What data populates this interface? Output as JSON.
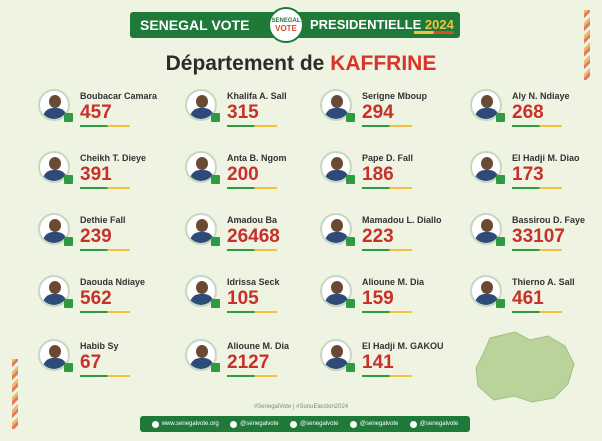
{
  "banner": {
    "left_text": "SENEGAL VOTE",
    "logo_top": "SENEGAL",
    "logo_bottom": "VOTE",
    "right_text": "PRESIDENTIELLE",
    "year": "2024"
  },
  "title": {
    "prefix": "Département de",
    "department": "KAFFRINE"
  },
  "candidates": [
    {
      "name": "Boubacar Camara",
      "votes": "457"
    },
    {
      "name": "Khalifa A. Sall",
      "votes": "315"
    },
    {
      "name": "Serigne Mboup",
      "votes": "294"
    },
    {
      "name": "Aly N. Ndiaye",
      "votes": "268"
    },
    {
      "name": "Cheikh T. Dieye",
      "votes": "391"
    },
    {
      "name": "Anta B. Ngom",
      "votes": "200"
    },
    {
      "name": "Pape D. Fall",
      "votes": "186"
    },
    {
      "name": "El Hadji M. Diao",
      "votes": "173"
    },
    {
      "name": "Dethie Fall",
      "votes": "239"
    },
    {
      "name": "Amadou Ba",
      "votes": "26468"
    },
    {
      "name": "Mamadou L. Diallo",
      "votes": "223"
    },
    {
      "name": "Bassirou D. Faye",
      "votes": "33107"
    },
    {
      "name": "Daouda Ndiaye",
      "votes": "562"
    },
    {
      "name": "Idrissa Seck",
      "votes": "105"
    },
    {
      "name": "Alioune M. Dia",
      "votes": "159"
    },
    {
      "name": "Thierno A. Sall",
      "votes": "461"
    },
    {
      "name": "Habib Sy",
      "votes": "67"
    },
    {
      "name": "Alioune M. Dia",
      "votes": "2127"
    },
    {
      "name": "El Hadji M. GAKOU",
      "votes": "141"
    }
  ],
  "hashtags": "#SenegalVote  |  #SunuElection2024",
  "footer": [
    {
      "icon": "globe-icon",
      "text": "www.senegalvote.org"
    },
    {
      "icon": "facebook-icon",
      "text": "@senegalvote"
    },
    {
      "icon": "twitter-icon",
      "text": "@senegalvote"
    },
    {
      "icon": "instagram-icon",
      "text": "@senegalvote"
    },
    {
      "icon": "linkedin-icon",
      "text": "@senegalvote"
    }
  ],
  "colors": {
    "brand_green": "#1f7a3a",
    "accent_red": "#c8302a",
    "accent_yellow": "#f4c040",
    "background": "#eef3e2"
  }
}
